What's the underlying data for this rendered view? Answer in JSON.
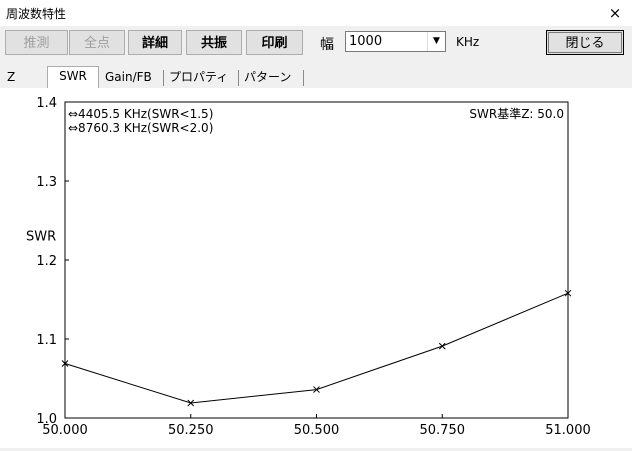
{
  "window": {
    "title": "周波数特性",
    "close_glyph": "×"
  },
  "toolbar": {
    "buttons": [
      {
        "label": "推測",
        "enabled": false
      },
      {
        "label": "全点",
        "enabled": false
      },
      {
        "label": "詳細",
        "enabled": true
      },
      {
        "label": "共振",
        "enabled": true
      },
      {
        "label": "印刷",
        "enabled": true
      }
    ],
    "width_label": "幅",
    "width_value": "1000",
    "width_unit": "KHz",
    "close_button": "閉じる"
  },
  "tabs": [
    {
      "label": "Z",
      "active": false
    },
    {
      "label": "SWR",
      "active": true
    },
    {
      "label": "Gain/FB",
      "active": false
    },
    {
      "label": "プロパティ",
      "active": false
    },
    {
      "label": "パターン",
      "active": false
    }
  ],
  "chart_data": {
    "type": "line",
    "title": "",
    "xlabel": "",
    "ylabel": "SWR",
    "xlim": [
      50.0,
      51.0
    ],
    "ylim": [
      1.0,
      1.4
    ],
    "x_ticks": [
      "50.000",
      "50.250",
      "50.500",
      "50.750",
      "51.000"
    ],
    "y_ticks": [
      "1.0",
      "1.1",
      "1.2",
      "1.3",
      "1.4"
    ],
    "grid": false,
    "series": [
      {
        "x": [
          50.0,
          50.25,
          50.5,
          50.75,
          51.0
        ],
        "y": [
          1.069,
          1.019,
          1.036,
          1.091,
          1.158
        ]
      }
    ],
    "annotations": [
      "⇔4405.5 KHz(SWR<1.5)",
      "⇔8760.3 KHz(SWR<2.0)"
    ],
    "reference_text": "SWR基準Z: 50.0"
  }
}
